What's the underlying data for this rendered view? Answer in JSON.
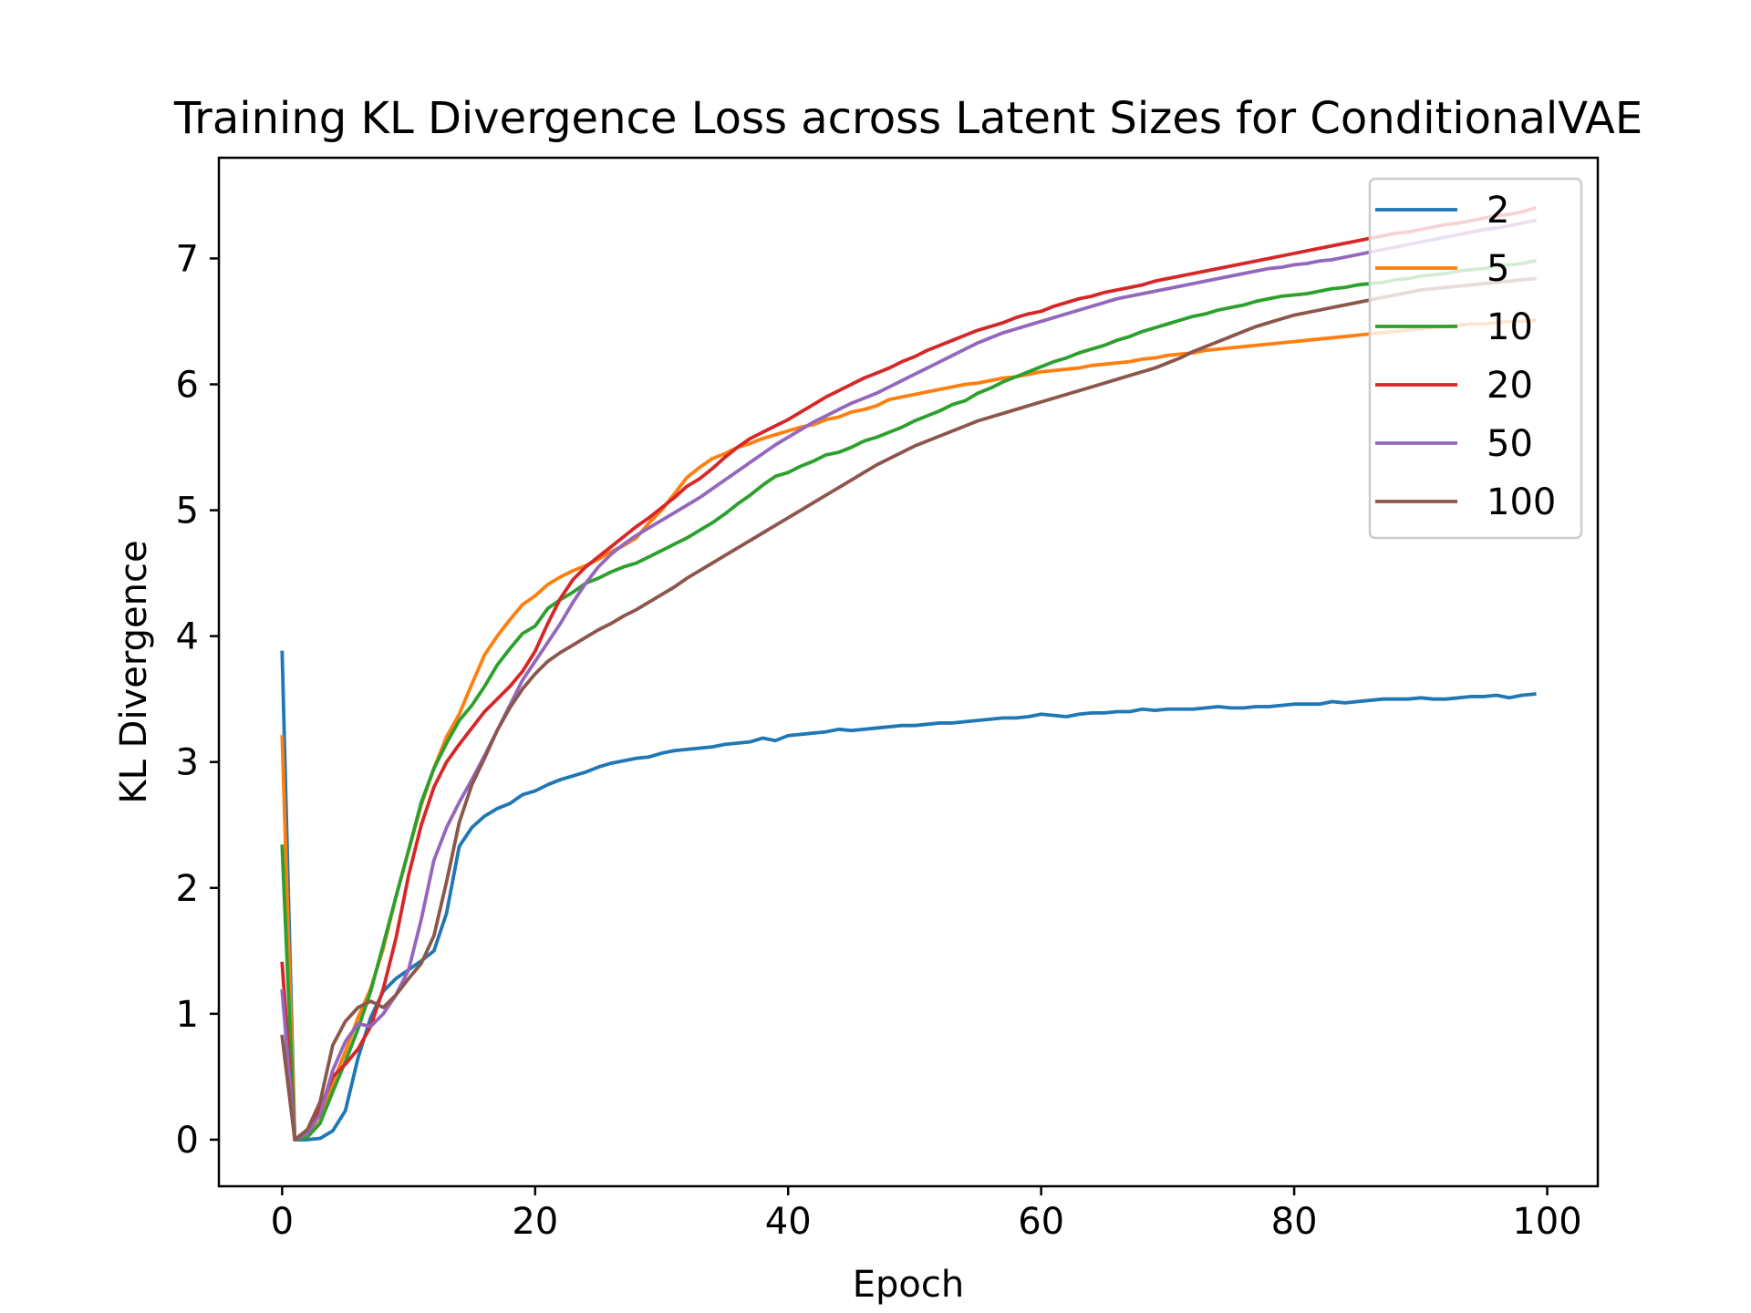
{
  "chart_data": {
    "type": "line",
    "title": "Training KL Divergence Loss across Latent Sizes for ConditionalVAE",
    "xlabel": "Epoch",
    "ylabel": "KL Divergence",
    "xlim": [
      -5,
      104
    ],
    "ylim": [
      -0.37,
      7.8
    ],
    "xticks": [
      0,
      20,
      40,
      60,
      80,
      100
    ],
    "yticks": [
      0,
      1,
      2,
      3,
      4,
      5,
      6,
      7
    ],
    "xtick_labels": [
      "0",
      "20",
      "40",
      "60",
      "80",
      "100"
    ],
    "ytick_labels": [
      "0",
      "1",
      "2",
      "3",
      "4",
      "5",
      "6",
      "7"
    ],
    "grid": false,
    "legend_position": "top-right",
    "x": [
      0,
      1,
      2,
      3,
      4,
      5,
      6,
      7,
      8,
      9,
      10,
      11,
      12,
      13,
      14,
      15,
      16,
      17,
      18,
      19,
      20,
      21,
      22,
      23,
      24,
      25,
      26,
      27,
      28,
      29,
      30,
      31,
      32,
      33,
      34,
      35,
      36,
      37,
      38,
      39,
      40,
      41,
      42,
      43,
      44,
      45,
      46,
      47,
      48,
      49,
      50,
      51,
      52,
      53,
      54,
      55,
      56,
      57,
      58,
      59,
      60,
      61,
      62,
      63,
      64,
      65,
      66,
      67,
      68,
      69,
      70,
      71,
      72,
      73,
      74,
      75,
      76,
      77,
      78,
      79,
      80,
      81,
      82,
      83,
      84,
      85,
      86,
      87,
      88,
      89,
      90,
      91,
      92,
      93,
      94,
      95,
      96,
      97,
      98,
      99
    ],
    "series": [
      {
        "name": "2",
        "color": "#1f77b4",
        "values": [
          3.87,
          0.0,
          0.0,
          0.01,
          0.07,
          0.23,
          0.65,
          0.97,
          1.18,
          1.28,
          1.35,
          1.42,
          1.5,
          1.8,
          2.33,
          2.48,
          2.57,
          2.63,
          2.67,
          2.74,
          2.77,
          2.82,
          2.86,
          2.89,
          2.92,
          2.96,
          2.99,
          3.01,
          3.03,
          3.04,
          3.07,
          3.09,
          3.1,
          3.11,
          3.12,
          3.14,
          3.15,
          3.16,
          3.19,
          3.17,
          3.21,
          3.22,
          3.23,
          3.24,
          3.26,
          3.25,
          3.26,
          3.27,
          3.28,
          3.29,
          3.29,
          3.3,
          3.31,
          3.31,
          3.32,
          3.33,
          3.34,
          3.35,
          3.35,
          3.36,
          3.38,
          3.37,
          3.36,
          3.38,
          3.39,
          3.39,
          3.4,
          3.4,
          3.42,
          3.41,
          3.42,
          3.42,
          3.42,
          3.43,
          3.44,
          3.43,
          3.43,
          3.44,
          3.44,
          3.45,
          3.46,
          3.46,
          3.46,
          3.48,
          3.47,
          3.48,
          3.49,
          3.5,
          3.5,
          3.5,
          3.51,
          3.5,
          3.5,
          3.51,
          3.52,
          3.52,
          3.53,
          3.51,
          3.53,
          3.54
        ]
      },
      {
        "name": "5",
        "color": "#ff7f0e",
        "values": [
          3.2,
          0.0,
          0.03,
          0.14,
          0.45,
          0.7,
          0.97,
          1.2,
          1.52,
          1.93,
          2.3,
          2.66,
          2.95,
          3.2,
          3.38,
          3.62,
          3.85,
          4.0,
          4.13,
          4.25,
          4.32,
          4.41,
          4.47,
          4.52,
          4.56,
          4.61,
          4.67,
          4.72,
          4.78,
          4.9,
          5.0,
          5.13,
          5.26,
          5.34,
          5.41,
          5.45,
          5.5,
          5.53,
          5.57,
          5.6,
          5.63,
          5.66,
          5.68,
          5.72,
          5.74,
          5.78,
          5.8,
          5.83,
          5.88,
          5.9,
          5.92,
          5.94,
          5.96,
          5.98,
          6.0,
          6.01,
          6.03,
          6.05,
          6.06,
          6.08,
          6.1,
          6.11,
          6.12,
          6.13,
          6.15,
          6.16,
          6.17,
          6.18,
          6.2,
          6.21,
          6.23,
          6.24,
          6.25,
          6.27,
          6.28,
          6.29,
          6.3,
          6.31,
          6.32,
          6.33,
          6.34,
          6.35,
          6.36,
          6.37,
          6.38,
          6.39,
          6.4,
          6.41,
          6.42,
          6.43,
          6.44,
          6.45,
          6.46,
          6.47,
          6.48,
          6.48,
          6.49,
          6.5,
          6.5,
          6.51
        ]
      },
      {
        "name": "10",
        "color": "#2ca02c",
        "values": [
          2.33,
          0.0,
          0.02,
          0.13,
          0.38,
          0.62,
          0.88,
          1.18,
          1.55,
          1.93,
          2.3,
          2.68,
          2.95,
          3.15,
          3.33,
          3.45,
          3.6,
          3.77,
          3.9,
          4.02,
          4.08,
          4.22,
          4.29,
          4.35,
          4.42,
          4.46,
          4.51,
          4.55,
          4.58,
          4.63,
          4.68,
          4.73,
          4.78,
          4.84,
          4.9,
          4.97,
          5.05,
          5.12,
          5.2,
          5.27,
          5.3,
          5.35,
          5.39,
          5.44,
          5.46,
          5.5,
          5.55,
          5.58,
          5.62,
          5.66,
          5.71,
          5.75,
          5.79,
          5.84,
          5.87,
          5.93,
          5.97,
          6.02,
          6.06,
          6.1,
          6.14,
          6.18,
          6.21,
          6.25,
          6.28,
          6.31,
          6.35,
          6.38,
          6.42,
          6.45,
          6.48,
          6.51,
          6.54,
          6.56,
          6.59,
          6.61,
          6.63,
          6.66,
          6.68,
          6.7,
          6.71,
          6.72,
          6.74,
          6.76,
          6.77,
          6.79,
          6.8,
          6.81,
          6.83,
          6.84,
          6.86,
          6.87,
          6.88,
          6.9,
          6.91,
          6.92,
          6.94,
          6.95,
          6.96,
          6.98
        ]
      },
      {
        "name": "20",
        "color": "#d62728",
        "values": [
          1.4,
          0.0,
          0.06,
          0.25,
          0.5,
          0.6,
          0.72,
          0.9,
          1.2,
          1.6,
          2.1,
          2.5,
          2.8,
          3.0,
          3.14,
          3.27,
          3.4,
          3.5,
          3.6,
          3.72,
          3.88,
          4.1,
          4.3,
          4.45,
          4.55,
          4.63,
          4.71,
          4.79,
          4.87,
          4.94,
          5.02,
          5.1,
          5.19,
          5.25,
          5.33,
          5.42,
          5.5,
          5.57,
          5.62,
          5.67,
          5.72,
          5.78,
          5.84,
          5.9,
          5.95,
          6.0,
          6.05,
          6.09,
          6.13,
          6.18,
          6.22,
          6.27,
          6.31,
          6.35,
          6.39,
          6.43,
          6.46,
          6.49,
          6.53,
          6.56,
          6.58,
          6.62,
          6.65,
          6.68,
          6.7,
          6.73,
          6.75,
          6.77,
          6.79,
          6.82,
          6.84,
          6.86,
          6.88,
          6.9,
          6.92,
          6.94,
          6.96,
          6.98,
          7.0,
          7.02,
          7.04,
          7.06,
          7.08,
          7.1,
          7.12,
          7.14,
          7.16,
          7.18,
          7.2,
          7.21,
          7.23,
          7.25,
          7.27,
          7.28,
          7.3,
          7.32,
          7.34,
          7.35,
          7.37,
          7.4
        ]
      },
      {
        "name": "50",
        "color": "#9467bd",
        "values": [
          1.18,
          0.0,
          0.05,
          0.2,
          0.55,
          0.78,
          0.92,
          0.9,
          1.0,
          1.15,
          1.35,
          1.75,
          2.22,
          2.48,
          2.68,
          2.86,
          3.05,
          3.25,
          3.45,
          3.65,
          3.8,
          3.95,
          4.1,
          4.27,
          4.42,
          4.55,
          4.65,
          4.73,
          4.8,
          4.86,
          4.92,
          4.98,
          5.04,
          5.1,
          5.17,
          5.24,
          5.31,
          5.38,
          5.45,
          5.52,
          5.58,
          5.64,
          5.7,
          5.75,
          5.8,
          5.85,
          5.89,
          5.93,
          5.98,
          6.03,
          6.08,
          6.13,
          6.18,
          6.23,
          6.28,
          6.33,
          6.37,
          6.41,
          6.44,
          6.47,
          6.5,
          6.53,
          6.56,
          6.59,
          6.62,
          6.65,
          6.68,
          6.7,
          6.72,
          6.74,
          6.76,
          6.78,
          6.8,
          6.82,
          6.84,
          6.86,
          6.88,
          6.9,
          6.92,
          6.93,
          6.95,
          6.96,
          6.98,
          6.99,
          7.01,
          7.03,
          7.05,
          7.07,
          7.09,
          7.11,
          7.13,
          7.15,
          7.17,
          7.19,
          7.21,
          7.23,
          7.24,
          7.26,
          7.28,
          7.3
        ]
      },
      {
        "name": "100",
        "color": "#8c564b",
        "values": [
          0.82,
          0.0,
          0.08,
          0.3,
          0.75,
          0.94,
          1.05,
          1.1,
          1.05,
          1.15,
          1.28,
          1.4,
          1.62,
          2.05,
          2.52,
          2.82,
          3.03,
          3.25,
          3.43,
          3.58,
          3.7,
          3.8,
          3.87,
          3.93,
          3.99,
          4.05,
          4.1,
          4.16,
          4.21,
          4.27,
          4.33,
          4.39,
          4.46,
          4.52,
          4.58,
          4.64,
          4.7,
          4.76,
          4.82,
          4.88,
          4.94,
          5.0,
          5.06,
          5.12,
          5.18,
          5.24,
          5.3,
          5.36,
          5.41,
          5.46,
          5.51,
          5.55,
          5.59,
          5.63,
          5.67,
          5.71,
          5.74,
          5.77,
          5.8,
          5.83,
          5.86,
          5.89,
          5.92,
          5.95,
          5.98,
          6.01,
          6.04,
          6.07,
          6.1,
          6.13,
          6.17,
          6.21,
          6.26,
          6.3,
          6.34,
          6.38,
          6.42,
          6.46,
          6.49,
          6.52,
          6.55,
          6.57,
          6.59,
          6.61,
          6.63,
          6.65,
          6.67,
          6.69,
          6.71,
          6.73,
          6.75,
          6.76,
          6.77,
          6.78,
          6.79,
          6.8,
          6.81,
          6.82,
          6.83,
          6.84
        ]
      }
    ]
  }
}
